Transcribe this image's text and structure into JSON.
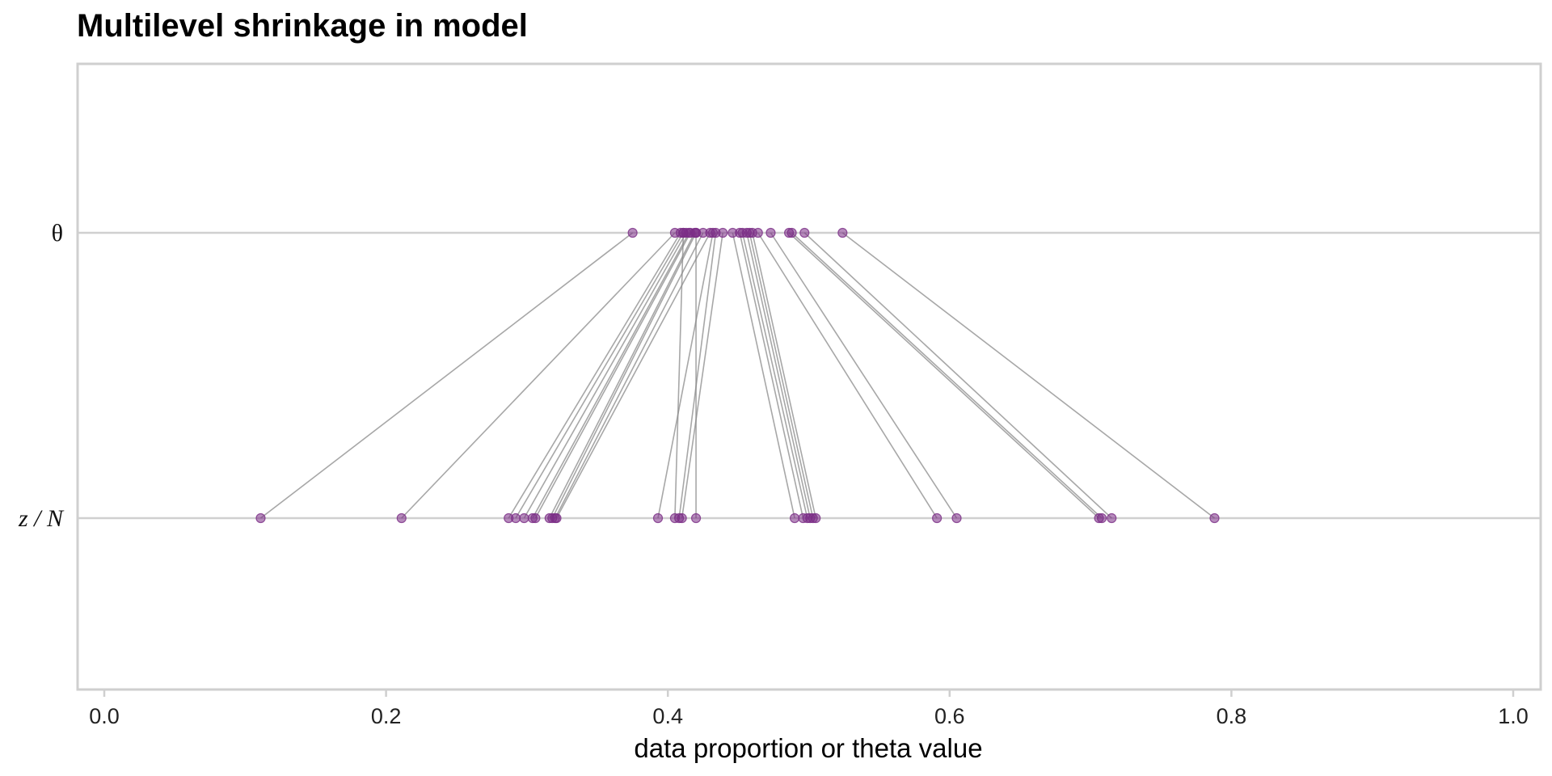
{
  "chart_data": {
    "type": "scatter",
    "title": "Multilevel shrinkage in model",
    "xlabel": "data proportion or theta value",
    "ylabel": "",
    "xlim": [
      0.0,
      1.0
    ],
    "x_ticks": [
      "0.0",
      "0.2",
      "0.4",
      "0.6",
      "0.8",
      "1.0"
    ],
    "rows": [
      {
        "label": "θ",
        "italic": false
      },
      {
        "label": "z / N",
        "italic": true
      }
    ],
    "grid": "horizontal row lines",
    "point_color": "#7B2D86",
    "line_color": "#8A8A8A",
    "pairs": [
      {
        "data": 0.111,
        "theta": 0.375
      },
      {
        "data": 0.211,
        "theta": 0.405
      },
      {
        "data": 0.287,
        "theta": 0.409
      },
      {
        "data": 0.292,
        "theta": 0.411
      },
      {
        "data": 0.298,
        "theta": 0.413
      },
      {
        "data": 0.304,
        "theta": 0.415
      },
      {
        "data": 0.306,
        "theta": 0.416
      },
      {
        "data": 0.316,
        "theta": 0.419
      },
      {
        "data": 0.318,
        "theta": 0.42
      },
      {
        "data": 0.32,
        "theta": 0.425
      },
      {
        "data": 0.321,
        "theta": 0.43
      },
      {
        "data": 0.393,
        "theta": 0.432
      },
      {
        "data": 0.405,
        "theta": 0.411
      },
      {
        "data": 0.408,
        "theta": 0.434
      },
      {
        "data": 0.41,
        "theta": 0.439
      },
      {
        "data": 0.42,
        "theta": 0.42
      },
      {
        "data": 0.49,
        "theta": 0.446
      },
      {
        "data": 0.496,
        "theta": 0.451
      },
      {
        "data": 0.499,
        "theta": 0.453
      },
      {
        "data": 0.501,
        "theta": 0.456
      },
      {
        "data": 0.503,
        "theta": 0.458
      },
      {
        "data": 0.505,
        "theta": 0.46
      },
      {
        "data": 0.591,
        "theta": 0.464
      },
      {
        "data": 0.605,
        "theta": 0.473
      },
      {
        "data": 0.706,
        "theta": 0.486
      },
      {
        "data": 0.708,
        "theta": 0.488
      },
      {
        "data": 0.715,
        "theta": 0.497
      },
      {
        "data": 0.788,
        "theta": 0.524
      }
    ]
  }
}
